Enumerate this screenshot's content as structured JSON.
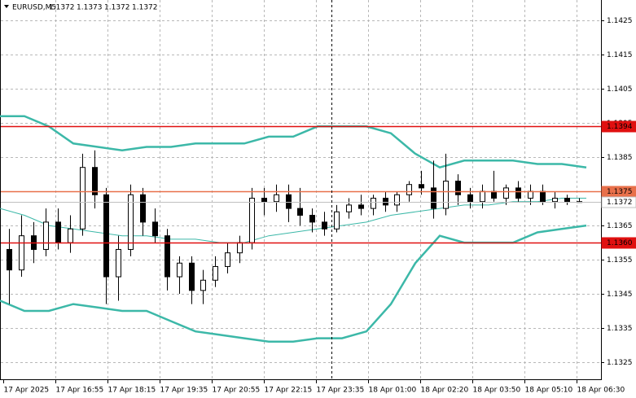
{
  "chart_data": {
    "type": "candlestick",
    "title": "EURUSD,M5",
    "header_values": [
      1.1372,
      1.1373,
      1.1372,
      1.1372
    ],
    "x_tick_labels": [
      "17 Apr 2025",
      "17 Apr 16:55",
      "17 Apr 18:15",
      "17 Apr 19:35",
      "17 Apr 20:55",
      "17 Apr 22:15",
      "17 Apr 23:35",
      "18 Apr 01:00",
      "18 Apr 02:20",
      "18 Apr 03:50",
      "18 Apr 05:10",
      "18 Apr 06:30"
    ],
    "ylim": [
      1.132,
      1.1431
    ],
    "yticks": [
      1.1425,
      1.1415,
      1.1405,
      1.1395,
      1.1385,
      1.1375,
      1.1365,
      1.1355,
      1.1345,
      1.1335,
      1.1325
    ],
    "grid": true,
    "up_color": "#ffffff",
    "down_color": "#000000",
    "ohlc": [
      [
        1.1358,
        1.1364,
        1.1342,
        1.1352
      ],
      [
        1.1352,
        1.1368,
        1.135,
        1.1362
      ],
      [
        1.1362,
        1.1366,
        1.1354,
        1.1358
      ],
      [
        1.1358,
        1.137,
        1.1356,
        1.1366
      ],
      [
        1.1366,
        1.137,
        1.1358,
        1.136
      ],
      [
        1.136,
        1.1368,
        1.1357,
        1.1364
      ],
      [
        1.1364,
        1.1386,
        1.1362,
        1.1382
      ],
      [
        1.1382,
        1.1387,
        1.137,
        1.1374
      ],
      [
        1.1374,
        1.1376,
        1.1342,
        1.135
      ],
      [
        1.135,
        1.1362,
        1.1343,
        1.1358
      ],
      [
        1.1358,
        1.1377,
        1.1356,
        1.1374
      ],
      [
        1.1374,
        1.1376,
        1.1362,
        1.1366
      ],
      [
        1.1366,
        1.137,
        1.136,
        1.1362
      ],
      [
        1.1362,
        1.1364,
        1.1346,
        1.135
      ],
      [
        1.135,
        1.1356,
        1.1345,
        1.1354
      ],
      [
        1.1354,
        1.1356,
        1.1342,
        1.1346
      ],
      [
        1.1346,
        1.1352,
        1.1342,
        1.1349
      ],
      [
        1.1349,
        1.1356,
        1.1347,
        1.1353
      ],
      [
        1.1353,
        1.136,
        1.1351,
        1.1357
      ],
      [
        1.1357,
        1.1362,
        1.1354,
        1.136
      ],
      [
        1.136,
        1.1376,
        1.1358,
        1.1373
      ],
      [
        1.1373,
        1.1376,
        1.1368,
        1.1372
      ],
      [
        1.1372,
        1.1377,
        1.1369,
        1.1374
      ],
      [
        1.1374,
        1.1377,
        1.1366,
        1.137
      ],
      [
        1.137,
        1.1376,
        1.1365,
        1.1368
      ],
      [
        1.1368,
        1.137,
        1.1363,
        1.1366
      ],
      [
        1.1366,
        1.1369,
        1.1362,
        1.1364
      ],
      [
        1.1364,
        1.1371,
        1.1363,
        1.1369
      ],
      [
        1.1369,
        1.1373,
        1.1367,
        1.1371
      ],
      [
        1.1371,
        1.1374,
        1.1368,
        1.137
      ],
      [
        1.137,
        1.1374,
        1.1368,
        1.1373
      ],
      [
        1.1373,
        1.1375,
        1.1369,
        1.1371
      ],
      [
        1.1371,
        1.1375,
        1.1369,
        1.1374
      ],
      [
        1.1374,
        1.1378,
        1.1372,
        1.1377
      ],
      [
        1.1377,
        1.1381,
        1.1374,
        1.1376
      ],
      [
        1.1376,
        1.1384,
        1.1367,
        1.137
      ],
      [
        1.137,
        1.1386,
        1.1368,
        1.1378
      ],
      [
        1.1378,
        1.138,
        1.1371,
        1.1374
      ],
      [
        1.1374,
        1.1376,
        1.137,
        1.1372
      ],
      [
        1.1372,
        1.1377,
        1.137,
        1.1375
      ],
      [
        1.1375,
        1.1381,
        1.1372,
        1.1373
      ],
      [
        1.1373,
        1.1377,
        1.1371,
        1.1376
      ],
      [
        1.1376,
        1.1378,
        1.1372,
        1.1373
      ],
      [
        1.1373,
        1.1377,
        1.1371,
        1.1375
      ],
      [
        1.1375,
        1.1377,
        1.1371,
        1.1372
      ],
      [
        1.1372,
        1.1375,
        1.137,
        1.1373
      ],
      [
        1.1373,
        1.1374,
        1.1371,
        1.1372
      ],
      [
        1.1372,
        1.1373,
        1.1372,
        1.1372
      ]
    ],
    "bands": [
      {
        "color": "#3cb8a8",
        "width": 2.5,
        "values": [
          1.1397,
          1.1397,
          1.1394,
          1.1389,
          1.1388,
          1.1387,
          1.1388,
          1.1388,
          1.1389,
          1.1389,
          1.1389,
          1.1391,
          1.1391,
          1.1394,
          1.1394,
          1.1394,
          1.1392,
          1.1386,
          1.1382,
          1.1384,
          1.1384,
          1.1384,
          1.1383,
          1.1383,
          1.1382
        ]
      },
      {
        "color": "#3cb8a8",
        "width": 1,
        "values": [
          1.137,
          1.1368,
          1.1365,
          1.1364,
          1.1363,
          1.1362,
          1.1362,
          1.1361,
          1.1361,
          1.136,
          1.136,
          1.1362,
          1.1363,
          1.1364,
          1.1365,
          1.1366,
          1.1368,
          1.1369,
          1.137,
          1.1371,
          1.1371,
          1.1372,
          1.1372,
          1.1373,
          1.1373
        ]
      },
      {
        "color": "#3cb8a8",
        "width": 2.5,
        "values": [
          1.1343,
          1.134,
          1.134,
          1.1342,
          1.1341,
          1.134,
          1.134,
          1.1337,
          1.1334,
          1.1333,
          1.1332,
          1.1331,
          1.1331,
          1.1332,
          1.1332,
          1.1334,
          1.1342,
          1.1354,
          1.1362,
          1.136,
          1.136,
          1.136,
          1.1363,
          1.1364,
          1.1365
        ]
      }
    ],
    "levels": [
      {
        "value": 1.1394,
        "color": "#e01010",
        "text_color": "#ffffff"
      },
      {
        "value": 1.1375,
        "color": "#e8704a",
        "text_color": "#ffffff"
      },
      {
        "value": 1.1372,
        "color": "#c0c0c0",
        "text_color": "#000000"
      },
      {
        "value": 1.136,
        "label": "1.1360",
        "color": "#e01010",
        "text_color": "#ffffff"
      }
    ]
  }
}
